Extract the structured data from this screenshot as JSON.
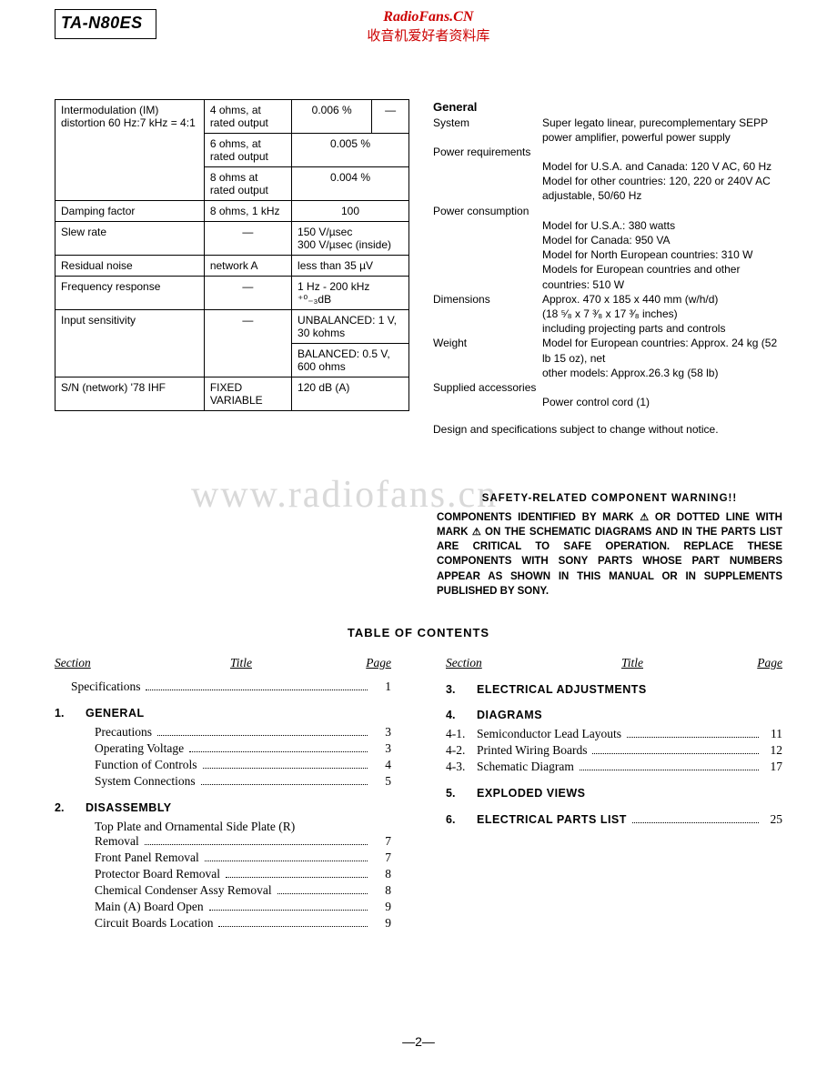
{
  "model": "TA-N80ES",
  "header_red1": "RadioFans.CN",
  "header_red2": "收音机爱好者资料库",
  "watermark": "www.radiofans.cn",
  "specs": {
    "rows": [
      {
        "p": "Intermodulation (IM) distortion 60 Hz:7 kHz = 4:1",
        "c": "4 ohms, at rated output",
        "v1": "0.006 %",
        "v2": "—"
      },
      {
        "p": "",
        "c": "6 ohms, at rated output",
        "v1": "0.005 %",
        "span": true
      },
      {
        "p": "",
        "c": "8 ohms at rated output",
        "v1": "0.004 %",
        "span": true
      },
      {
        "p": "Damping factor",
        "c": "8 ohms, 1 kHz",
        "v1": "100",
        "span": true
      },
      {
        "p": "Slew rate",
        "c": "—",
        "v1": "150 V/µsec\n300 V/µsec (inside)",
        "left": true,
        "span": true
      },
      {
        "p": "Residual noise",
        "c": "network A",
        "v1": "less than 35 µV",
        "left": true,
        "span": true
      },
      {
        "p": "Frequency response",
        "c": "—",
        "v1": "1 Hz - 200 kHz  ⁺⁰₋₃dB",
        "left": true,
        "span": true
      },
      {
        "p": "Input sensitivity",
        "c": "—",
        "v1": "UNBALANCED: 1 V, 30 kohms",
        "left": true,
        "span": true,
        "rowspan": 2
      },
      {
        "p": "",
        "c": "",
        "v1": "BALANCED: 0.5 V, 600 ohms",
        "left": true,
        "span": true,
        "cont": true
      },
      {
        "p": "S/N (network) '78 IHF",
        "c": "FIXED VARIABLE",
        "v1": "120 dB (A)",
        "left": true,
        "span": true
      }
    ]
  },
  "general": {
    "heading": "General",
    "system_label": "System",
    "system_val": "Super legato linear, purecomplementary SEPP power amplifier, powerful power supply",
    "powreq_label": "Power requirements",
    "powreq_1": "Model for U.S.A. and Canada: 120 V AC, 60 Hz",
    "powreq_2": "Model for other countries: 120, 220 or 240V AC adjustable, 50/60 Hz",
    "powcon_label": "Power consumption",
    "powcon_1": "Model for U.S.A.: 380 watts",
    "powcon_2": "Model for Canada: 950 VA",
    "powcon_3": "Model for North European countries: 310 W",
    "powcon_4": "Models for European countries and other countries: 510 W",
    "dim_label": "Dimensions",
    "dim_1": "Approx. 470 x 185 x 440 mm (w/h/d)",
    "dim_2": "(18 ⁵⁄₈ x 7 ³⁄₈ x 17 ³⁄₈ inches)",
    "dim_3": "including projecting parts and controls",
    "weight_label": "Weight",
    "weight_1": "Model for European countries: Approx. 24 kg (52 lb 15 oz), net",
    "weight_2": "other models: Approx.26.3 kg (58 lb)",
    "acc_label": "Supplied accessories",
    "acc_1": "Power control cord (1)",
    "note": "Design and specifications subject to change without notice."
  },
  "warning": {
    "title": "SAFETY-RELATED COMPONENT WARNING!!",
    "body": "COMPONENTS IDENTIFIED BY MARK △ OR DOTTED LINE WITH MARK △ ON THE SCHEMATIC DIAGRAMS AND IN THE PARTS LIST ARE CRITICAL TO SAFE OPERATION. REPLACE THESE COMPONENTS WITH SONY PARTS WHOSE PART NUMBERS APPEAR AS SHOWN IN THIS MANUAL OR IN SUPPLEMENTS PUBLISHED BY SONY."
  },
  "toc": {
    "title": "TABLE OF CONTENTS",
    "hdr_section": "Section",
    "hdr_title": "Title",
    "hdr_page": "Page",
    "left": [
      {
        "type": "item",
        "label": "Specifications",
        "page": "1",
        "pad": 18
      },
      {
        "type": "sec",
        "num": "1.",
        "label": "GENERAL"
      },
      {
        "type": "item",
        "label": "Precautions",
        "page": "3"
      },
      {
        "type": "item",
        "label": "Operating Voltage",
        "page": "3"
      },
      {
        "type": "item",
        "label": "Function of Controls",
        "page": "4"
      },
      {
        "type": "item",
        "label": "System Connections",
        "page": "5"
      },
      {
        "type": "sec",
        "num": "2.",
        "label": "DISASSEMBLY"
      },
      {
        "type": "item",
        "label": "Top Plate and Ornamental Side Plate (R) Removal",
        "page": "7",
        "wrap": true
      },
      {
        "type": "item",
        "label": "Front Panel Removal",
        "page": "7"
      },
      {
        "type": "item",
        "label": "Protector Board Removal",
        "page": "8"
      },
      {
        "type": "item",
        "label": "Chemical Condenser Assy Removal",
        "page": "8"
      },
      {
        "type": "item",
        "label": "Main (A) Board Open",
        "page": "9"
      },
      {
        "type": "item",
        "label": "Circuit Boards Location",
        "page": "9"
      }
    ],
    "right": [
      {
        "type": "sec",
        "num": "3.",
        "label": "ELECTRICAL ADJUSTMENTS"
      },
      {
        "type": "sec",
        "num": "4.",
        "label": "DIAGRAMS"
      },
      {
        "type": "sub",
        "num": "4-1.",
        "label": "Semiconductor Lead Layouts",
        "page": "11"
      },
      {
        "type": "sub",
        "num": "4-2.",
        "label": "Printed Wiring Boards",
        "page": "12"
      },
      {
        "type": "sub",
        "num": "4-3.",
        "label": "Schematic Diagram",
        "page": "17"
      },
      {
        "type": "sec",
        "num": "5.",
        "label": "EXPLODED VIEWS"
      },
      {
        "type": "secpage",
        "num": "6.",
        "label": "ELECTRICAL PARTS LIST",
        "page": "25"
      }
    ]
  },
  "page_number": "—2—"
}
